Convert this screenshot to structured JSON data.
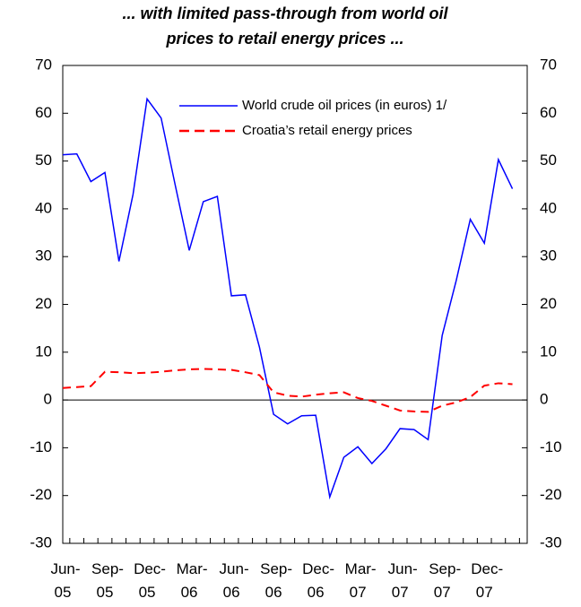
{
  "chart_data": {
    "type": "line",
    "title": [
      "... with limited pass-through from world oil",
      "prices to retail energy prices ..."
    ],
    "categories": [
      "Jun-05",
      null,
      null,
      "Sep-05",
      null,
      null,
      "Dec-05",
      null,
      null,
      "Mar-06",
      null,
      null,
      "Jun-06",
      null,
      null,
      "Sep-06",
      null,
      null,
      "Dec-06",
      null,
      null,
      "Mar-07",
      null,
      null,
      "Jun-07",
      null,
      null,
      "Sep-07",
      null,
      null,
      "Dec-07",
      null,
      null
    ],
    "series": [
      {
        "name": "World crude oil prices (in euros) 1/",
        "color": "#0000ff",
        "dash": false,
        "values": [
          51.3,
          51.5,
          45.7,
          47.6,
          29,
          43,
          63,
          59,
          45,
          31.3,
          41.5,
          42.6,
          21.8,
          22,
          11,
          -3,
          -5,
          -3.3,
          -3.2,
          -20.3,
          -12,
          -9.8,
          -13.3,
          -10.2,
          -6,
          -6.2,
          -8.3,
          13.5,
          25,
          37.8,
          32.8,
          50.3,
          44.2
        ]
      },
      {
        "name": "Croatia’s retail energy prices",
        "color": "#ff0000",
        "dash": true,
        "values": [
          2.5,
          2.7,
          2.9,
          5.9,
          5.8,
          5.6,
          5.7,
          5.9,
          6.2,
          6.4,
          6.5,
          6.4,
          6.3,
          5.8,
          5.2,
          1.6,
          0.9,
          0.7,
          1.1,
          1.4,
          1.6,
          0.4,
          -0.2,
          -1.2,
          -2.2,
          -2.4,
          -2.5,
          -1.2,
          -0.5,
          0.6,
          3.0,
          3.5,
          3.3
        ]
      }
    ],
    "ylim": [
      -30,
      70
    ],
    "yticks": [
      -30,
      -20,
      -10,
      0,
      10,
      20,
      30,
      40,
      50,
      60,
      70
    ],
    "y2lim": [
      -30,
      70
    ],
    "y2ticks": [
      -30,
      -20,
      -10,
      0,
      10,
      20,
      30,
      40,
      50,
      60,
      70
    ],
    "grid": false
  }
}
